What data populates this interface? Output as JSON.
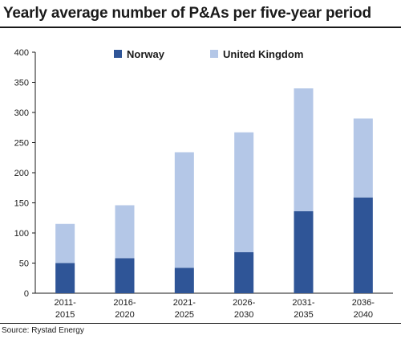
{
  "title": "Yearly average number of P&As per five-year period",
  "source": "Source: Rystad Energy",
  "chart_data": {
    "type": "bar",
    "stacked": true,
    "title": "Yearly average number of P&As per five-year period",
    "categories": [
      [
        "2011-",
        "2015"
      ],
      [
        "2016-",
        "2020"
      ],
      [
        "2021-",
        "2025"
      ],
      [
        "2026-",
        "2030"
      ],
      [
        "2031-",
        "2035"
      ],
      [
        "2036-",
        "2040"
      ]
    ],
    "series": [
      {
        "name": "Norway",
        "color": "#2f5597",
        "values": [
          50,
          58,
          42,
          68,
          136,
          159
        ]
      },
      {
        "name": "United Kingdom",
        "color": "#b4c7e7",
        "values": [
          65,
          88,
          192,
          199,
          204,
          131
        ]
      }
    ],
    "ylim": [
      0,
      400
    ],
    "yticks": [
      0,
      50,
      100,
      150,
      200,
      250,
      300,
      350,
      400
    ],
    "grid": false,
    "legend": "top"
  }
}
